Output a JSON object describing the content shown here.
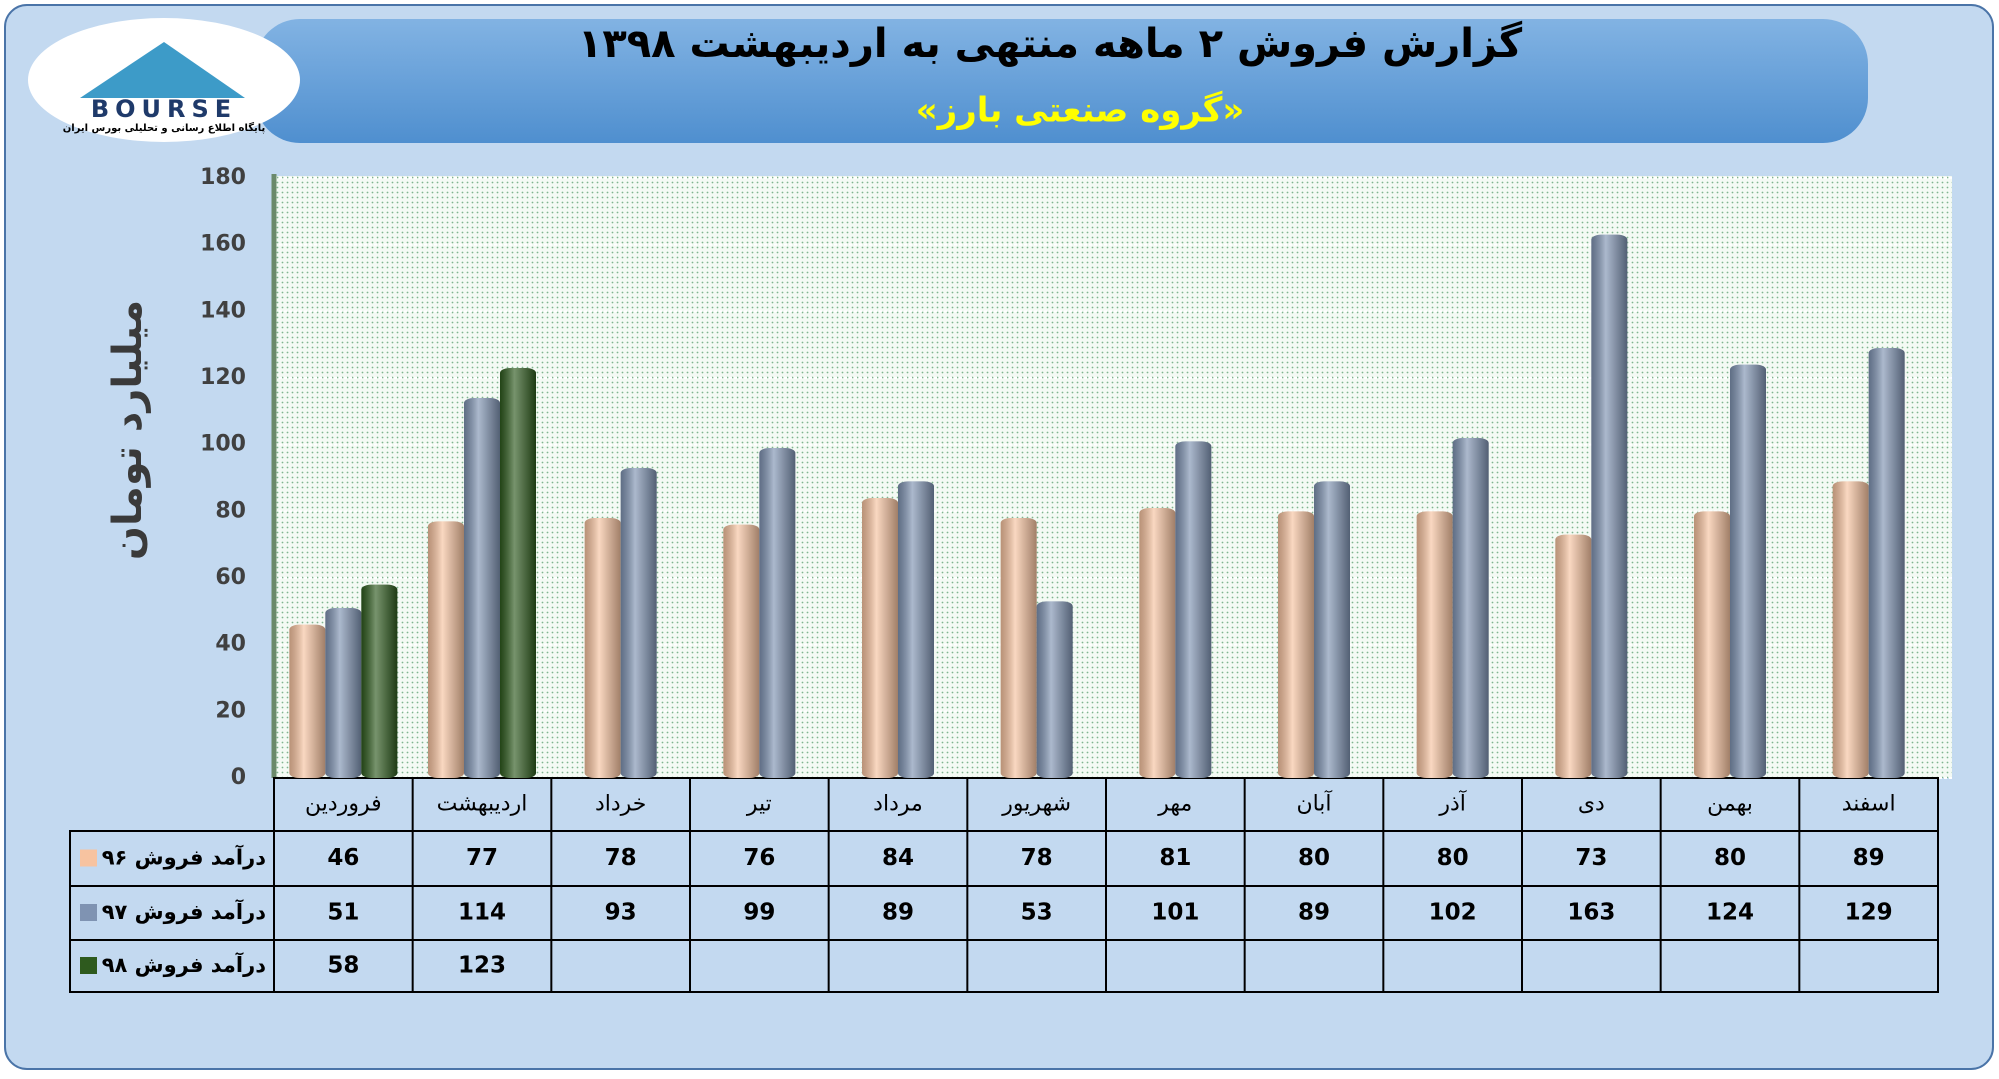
{
  "logo": {
    "name": "BOURSE",
    "tagline": "پایگاه اطلاع رسانی و تحلیلی بورس ایران"
  },
  "chart_data": {
    "type": "bar",
    "title": "گزارش فروش ۲ ماهه منتهی به اردیبهشت ۱۳۹۸",
    "subtitle": "«گروه صنعتی بارز»",
    "y_label": "میلیارد تومان",
    "categories": [
      "فروردین",
      "اردیبهشت",
      "خرداد",
      "تیر",
      "مرداد",
      "شهریور",
      "مهر",
      "آبان",
      "آذر",
      "دی",
      "بهمن",
      "اسفند"
    ],
    "series": [
      {
        "name": "درآمد فروش ۹۶",
        "color": "#f7c3a0",
        "values": [
          46,
          77,
          78,
          76,
          84,
          78,
          81,
          80,
          80,
          73,
          80,
          89
        ]
      },
      {
        "name": "درآمد فروش ۹۷",
        "color": "#7f93b2",
        "values": [
          51,
          114,
          93,
          99,
          89,
          53,
          101,
          89,
          102,
          163,
          124,
          129
        ]
      },
      {
        "name": "درآمد فروش ۹۸",
        "color": "#2e5a1e",
        "values": [
          58,
          123,
          null,
          null,
          null,
          null,
          null,
          null,
          null,
          null,
          null,
          null
        ]
      }
    ],
    "ylim": [
      0,
      180
    ],
    "yticks": [
      0,
      20,
      40,
      60,
      80,
      100,
      120,
      140,
      160,
      180
    ],
    "grid": true
  }
}
